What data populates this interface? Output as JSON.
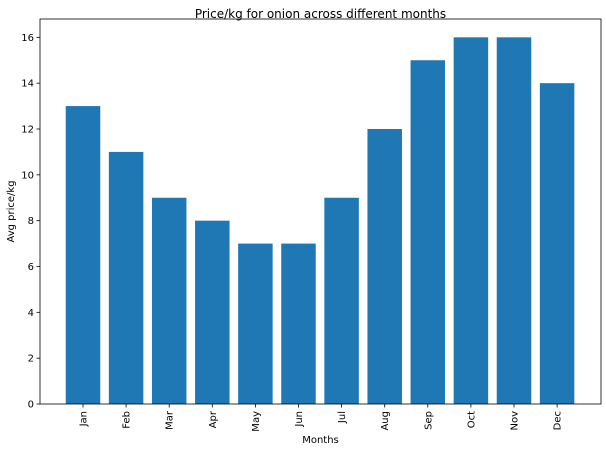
{
  "chart_data": {
    "type": "bar",
    "title": "Price/kg for onion across different months",
    "xlabel": "Months",
    "ylabel": "Avg price/kg",
    "categories": [
      "Jan",
      "Feb",
      "Mar",
      "Apr",
      "May",
      "Jun",
      "Jul",
      "Aug",
      "Sep",
      "Oct",
      "Nov",
      "Dec"
    ],
    "values": [
      13,
      11,
      9,
      8,
      7,
      7,
      9,
      12,
      15,
      16,
      16,
      14
    ],
    "ylim": [
      0,
      16.8
    ],
    "yticks": [
      0,
      2,
      4,
      6,
      8,
      10,
      12,
      14,
      16
    ],
    "bar_color": "#1f77b4",
    "grid": false,
    "legend": "none"
  }
}
